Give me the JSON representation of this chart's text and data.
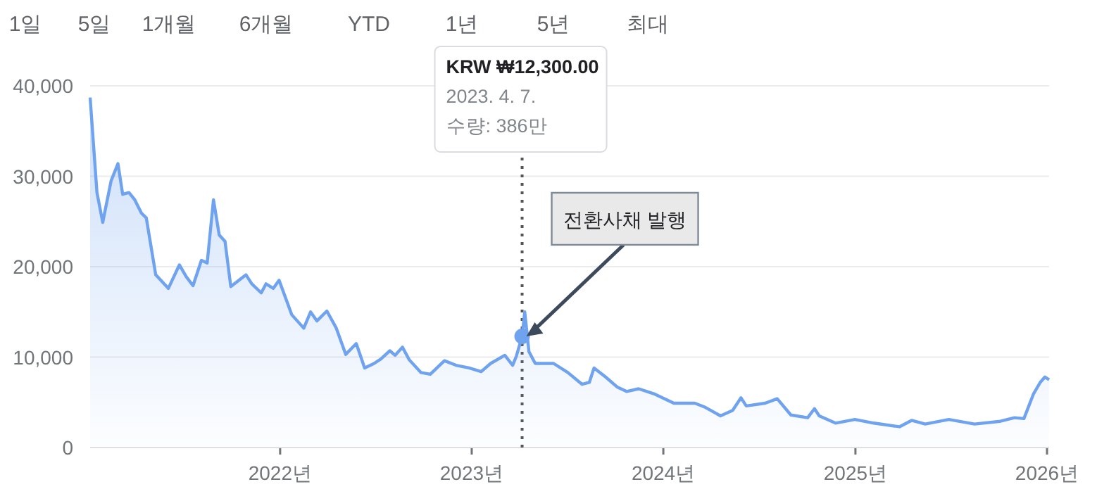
{
  "chart_data": {
    "type": "area",
    "annotations": [
      "1일",
      "5일",
      "1개월",
      "6개월",
      "YTD",
      "1년",
      "5년",
      "최대",
      "KRW ₩12,300.00\n2023. 4. 7.\n수량: 386만",
      {
        "text": "전환사채 발행",
        "x": "2023-04-07",
        "y": 12300
      }
    ],
    "x": [
      "2021-01-04",
      "2021-01-17",
      "2021-01-28",
      "2021-02-13",
      "2021-02-26",
      "2021-03-07",
      "2021-03-19",
      "2021-03-30",
      "2021-04-12",
      "2021-04-21",
      "2021-05-09",
      "2021-06-02",
      "2021-06-23",
      "2021-07-06",
      "2021-07-19",
      "2021-08-04",
      "2021-08-15",
      "2021-08-27",
      "2021-09-07",
      "2021-09-18",
      "2021-09-29",
      "2021-10-28",
      "2021-11-08",
      "2021-11-26",
      "2021-12-05",
      "2021-12-19",
      "2021-12-30",
      "2022-01-23",
      "2022-02-15",
      "2022-02-28",
      "2022-03-12",
      "2022-03-31",
      "2022-04-18",
      "2022-05-06",
      "2022-05-26",
      "2022-06-11",
      "2022-06-29",
      "2022-07-12",
      "2022-07-29",
      "2022-08-08",
      "2022-08-22",
      "2022-09-04",
      "2022-09-26",
      "2022-10-14",
      "2022-11-10",
      "2022-12-02",
      "2022-12-27",
      "2023-01-19",
      "2023-02-06",
      "2023-03-05",
      "2023-03-20",
      "2023-03-27",
      "2023-04-07",
      "2023-04-12",
      "2023-04-20",
      "2023-05-02",
      "2023-06-06",
      "2023-07-03",
      "2023-07-30",
      "2023-08-13",
      "2023-08-22",
      "2023-09-13",
      "2023-10-05",
      "2023-10-23",
      "2023-11-15",
      "2023-12-16",
      "2024-01-21",
      "2024-03-01",
      "2024-03-19",
      "2024-04-19",
      "2024-05-12",
      "2024-05-28",
      "2024-06-07",
      "2024-07-13",
      "2024-08-05",
      "2024-08-31",
      "2024-10-02",
      "2024-10-15",
      "2024-10-24",
      "2024-11-24",
      "2024-12-31",
      "2025-02-05",
      "2025-03-26",
      "2025-04-18",
      "2025-05-14",
      "2025-06-28",
      "2025-08-16",
      "2025-10-04",
      "2025-10-31",
      "2025-11-18",
      "2025-12-06",
      "2025-12-19",
      "2025-12-28",
      "2026-01-05"
    ],
    "series": [
      {
        "color": "#6fa3ef",
        "values": [
          38700,
          28200,
          24900,
          29500,
          31400,
          28000,
          28200,
          27400,
          25900,
          25400,
          19100,
          17600,
          20200,
          18900,
          17900,
          20700,
          20400,
          27400,
          23500,
          22800,
          17800,
          19100,
          18100,
          17100,
          18100,
          17600,
          18500,
          14700,
          13200,
          15000,
          14000,
          15100,
          13200,
          10300,
          11500,
          8800,
          9300,
          9800,
          10700,
          10200,
          11100,
          9700,
          8300,
          8100,
          9600,
          9100,
          8800,
          8400,
          9300,
          10200,
          9100,
          10100,
          12300,
          15000,
          10600,
          9300,
          9300,
          8300,
          7000,
          7200,
          8800,
          7800,
          6700,
          6200,
          6500,
          5900,
          4900,
          4900,
          4500,
          3500,
          4100,
          5500,
          4600,
          4900,
          5400,
          3600,
          3300,
          4300,
          3500,
          2700,
          3100,
          2700,
          2300,
          3000,
          2600,
          3100,
          2600,
          2900,
          3300,
          3200,
          5900,
          7200,
          7800,
          7500
        ]
      }
    ],
    "xlim": [
      "2021-01-04",
      "2026-01-05"
    ],
    "xticks": [
      {
        "value": "2022-01-01",
        "label": "2022년"
      },
      {
        "value": "2023-01-01",
        "label": "2023년"
      },
      {
        "value": "2024-01-01",
        "label": "2024년"
      },
      {
        "value": "2025-01-01",
        "label": "2025년"
      },
      {
        "value": "2026-01-01",
        "label": "2026년"
      }
    ],
    "ylim": [
      0,
      40000
    ],
    "yticks": [
      {
        "value": 0,
        "label": "0"
      },
      {
        "value": 10000,
        "label": "10,000"
      },
      {
        "value": 20000,
        "label": "20,000"
      },
      {
        "value": 30000,
        "label": "30,000"
      },
      {
        "value": 40000,
        "label": "40,000"
      }
    ],
    "ref_lines": [
      {
        "axis": "x",
        "value": "2023-04-07",
        "line_style": "dotted",
        "color": "#555555"
      }
    ],
    "grid": "y",
    "line_style": "solid"
  }
}
